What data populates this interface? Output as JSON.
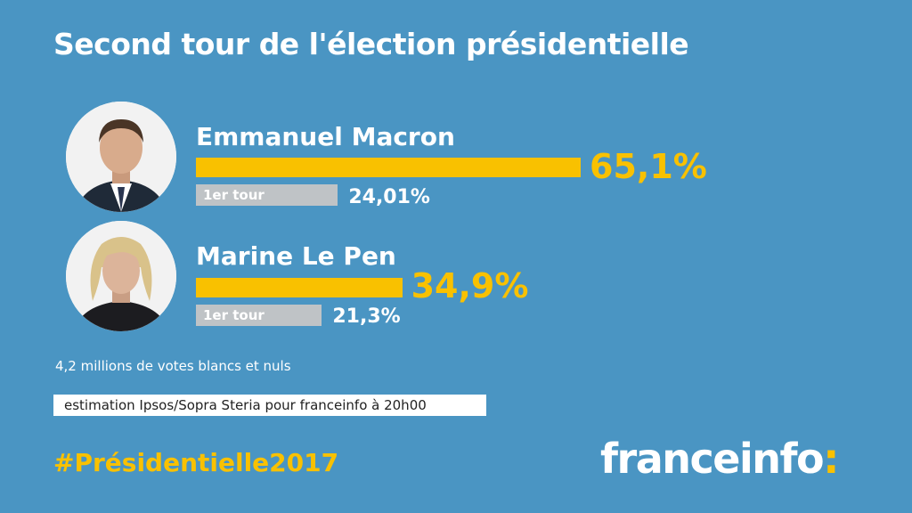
{
  "colors": {
    "background": "#4a95c3",
    "second_round_bar": "#f9c100",
    "first_round_bar": "#bfc3c6",
    "text": "#ffffff"
  },
  "chart_data": {
    "type": "bar",
    "title": "Second tour de l'élection présidentielle",
    "categories": [
      "Emmanuel Macron",
      "Marine Le Pen"
    ],
    "series": [
      {
        "values": [
          65.1,
          34.9
        ],
        "labels": [
          "65,1%",
          "34,9%"
        ],
        "color": "#f9c100"
      },
      {
        "name": "1er tour",
        "values": [
          24.01,
          21.3
        ],
        "labels": [
          "24,01%",
          "21,3%"
        ],
        "color": "#bfc3c6"
      }
    ]
  },
  "candidates": [
    {
      "name": "Emmanuel Macron",
      "photo_icon": "macron-photo"
    },
    {
      "name": "Marine Le Pen",
      "photo_icon": "le-pen-photo"
    }
  ],
  "first_round_label": "1er tour",
  "note": "4,2 millions de votes blancs et nuls",
  "source": "estimation Ipsos/Sopra Steria pour franceinfo à 20h00",
  "hashtag": "#Présidentielle2017",
  "logo": {
    "word": "franceinfo",
    "colon": ":"
  }
}
